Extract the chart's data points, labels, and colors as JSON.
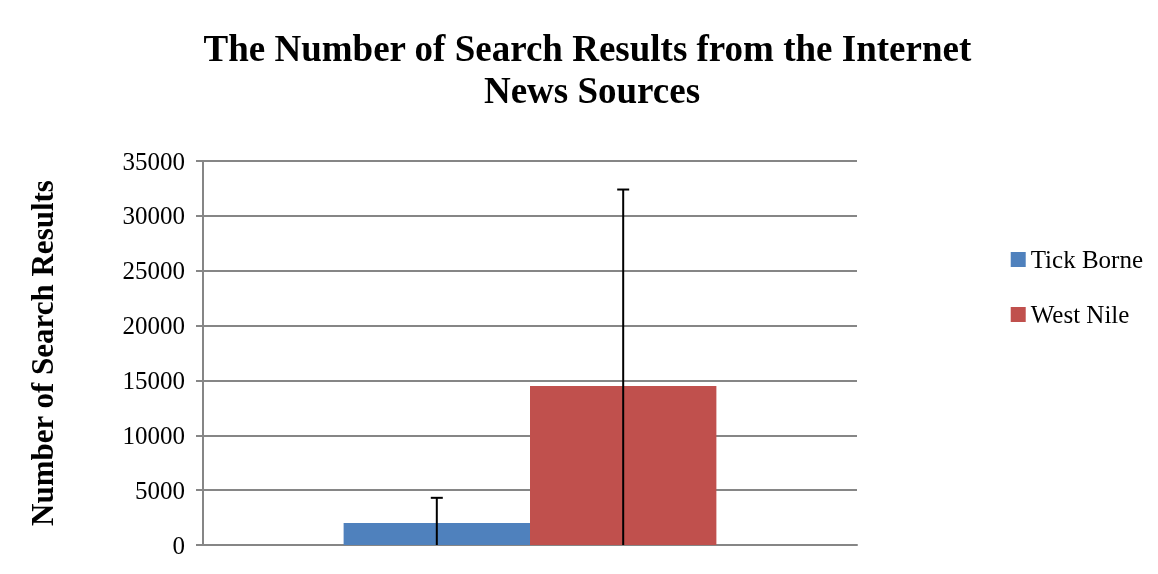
{
  "chart_data": {
    "type": "bar",
    "title": "The Number of Search Results from the Internet News Sources",
    "ylabel": "Number of Search Results",
    "categories": [
      null
    ],
    "series": [
      {
        "name": "Tick Borne",
        "color": "#4f81bd",
        "values": [
          2000
        ],
        "errors": [
          [
            0,
            4300
          ]
        ]
      },
      {
        "name": "West Nile",
        "color": "#c0504d",
        "values": [
          14500
        ],
        "errors": [
          [
            0,
            32400
          ]
        ]
      }
    ],
    "ylim": [
      0,
      35000
    ],
    "yticks": [
      0,
      5000,
      10000,
      15000,
      20000,
      25000,
      30000,
      35000
    ],
    "grid": "y",
    "legend": "right"
  }
}
